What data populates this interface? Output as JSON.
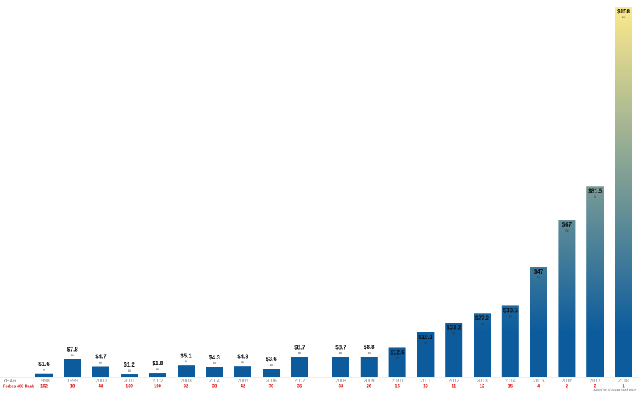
{
  "chart_data": {
    "type": "bar",
    "categories": [
      "1998",
      "1999",
      "2000",
      "2001",
      "2002",
      "2003",
      "2004",
      "2005",
      "2006",
      "2007",
      "2008",
      "2009",
      "2010",
      "2011",
      "2012",
      "2013",
      "2014",
      "2015",
      "2016",
      "2017",
      "2018"
    ],
    "values": [
      1.6,
      7.8,
      4.7,
      1.2,
      1.8,
      5.1,
      4.3,
      4.8,
      3.6,
      8.7,
      8.7,
      8.8,
      12.6,
      19.1,
      23.2,
      27.2,
      30.5,
      47,
      67,
      81.5,
      158
    ],
    "value_labels": [
      "$1.6",
      "$7.8",
      "$4.7",
      "$1.2",
      "$1.8",
      "$5.1",
      "$4.3",
      "$4.8",
      "$3.6",
      "$8.7",
      "$8.7",
      "$8.8",
      "$12.6",
      "$19.1",
      "$23.2",
      "$27.2",
      "$30.5",
      "$47",
      "$67",
      "$81.5",
      "$158"
    ],
    "value_unit": "Bil",
    "ranks": [
      "102",
      "18",
      "48",
      "189",
      "100",
      "32",
      "38",
      "42",
      "70",
      "35",
      "33",
      "26",
      "16",
      "13",
      "11",
      "12",
      "15",
      "4",
      "2",
      "2",
      "1"
    ],
    "category_axis_label": "YEAR",
    "rank_label": "Forbes 400 Rank",
    "footnote": "Based on 2/1/2018 stock price",
    "ylim": [
      0,
      158
    ],
    "colors": {
      "low": "#0b5b9d",
      "high": "#fde98c"
    }
  }
}
